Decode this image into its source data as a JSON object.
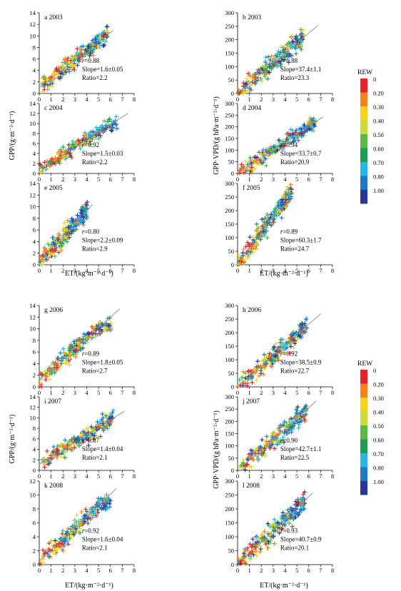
{
  "figure": {
    "left_ylabel": "GPP/(g·m⁻²·d⁻¹)",
    "right_ylabel": "GPP·VPD/(g hPa·m⁻²·d⁻¹)",
    "xlabel": "ET/(kg·m⁻²·d⁻¹)",
    "legend": {
      "title": "REW",
      "labels": [
        "0",
        "0.20",
        "0.30",
        "0.40",
        "0.50",
        "0.60",
        "0.70",
        "0.80",
        "1.00"
      ],
      "colors": [
        "#e8202a",
        "#f5821f",
        "#f8d51b",
        "#c8dc3a",
        "#5cb847",
        "#1e9d4e",
        "#28b6e8",
        "#1f78c4",
        "#283897"
      ]
    }
  },
  "chart_data": [
    {
      "id": "a",
      "type": "scatter",
      "title": "a 2003",
      "xlabel": "",
      "ylabel": "GPP/(g·m⁻²·d⁻¹)",
      "xlim": [
        0,
        8
      ],
      "ylim": [
        0,
        14
      ],
      "xticks": [
        0,
        1,
        2,
        3,
        4,
        5,
        6,
        7,
        8
      ],
      "yticks": [
        0,
        2,
        4,
        6,
        8,
        10,
        12,
        14
      ],
      "stats": [
        "r=0.88",
        "Slope=1.6±0.05",
        "Ratio=2.2"
      ],
      "fit": {
        "slope": 1.6,
        "intercept": 1.0,
        "x_range": [
          0,
          6.2
        ]
      },
      "scatter_shape": {
        "slope": 1.6,
        "intercept": 1.0,
        "spread": 1.4,
        "x_max": 5.8
      }
    },
    {
      "id": "b",
      "type": "scatter",
      "title": "b 2003",
      "xlabel": "",
      "ylabel": "GPP·VPD/(g hPa·m⁻²·d⁻¹)",
      "xlim": [
        0,
        8
      ],
      "ylim": [
        0,
        300
      ],
      "xticks": [
        0,
        1,
        2,
        3,
        4,
        5,
        6,
        7,
        8
      ],
      "yticks": [
        0,
        50,
        100,
        150,
        200,
        250,
        300
      ],
      "stats": [
        "r=0.88",
        "Slope=37.4±1.1",
        "Ratio=23.3"
      ],
      "fit": {
        "slope": 37.4,
        "intercept": 0,
        "x_range": [
          0.3,
          6.8
        ]
      },
      "scatter_shape": {
        "slope": 37.4,
        "intercept": 0,
        "spread": 35,
        "x_max": 5.5
      }
    },
    {
      "id": "c",
      "type": "scatter",
      "title": "c 2004",
      "xlabel": "",
      "ylabel": "GPP/(g·m⁻²·d⁻¹)",
      "xlim": [
        0,
        8
      ],
      "ylim": [
        0,
        14
      ],
      "xticks": [
        0,
        1,
        2,
        3,
        4,
        5,
        6,
        7,
        8
      ],
      "yticks": [
        0,
        2,
        4,
        6,
        8,
        10,
        12,
        14
      ],
      "stats": [
        "r=0.92",
        "Slope=1.5±0.03",
        "Ratio=2.2"
      ],
      "fit": {
        "slope": 1.5,
        "intercept": 0.8,
        "x_range": [
          0,
          7.5
        ]
      },
      "scatter_shape": {
        "slope": 1.5,
        "intercept": 0.8,
        "spread": 1.2,
        "x_max": 6.5
      }
    },
    {
      "id": "d",
      "type": "scatter",
      "title": "d 2004",
      "xlabel": "",
      "ylabel": "GPP·VPD/(g hPa·m⁻²·d⁻¹)",
      "xlim": [
        0,
        8
      ],
      "ylim": [
        0,
        300
      ],
      "xticks": [
        0,
        1,
        2,
        3,
        4,
        5,
        6,
        7,
        8
      ],
      "yticks": [
        0,
        50,
        100,
        150,
        200,
        250,
        300
      ],
      "stats": [
        "r=0.94",
        "Slope=33.7±0.7",
        "Ratio=20.9"
      ],
      "fit": {
        "slope": 33.7,
        "intercept": 0,
        "x_range": [
          0.3,
          7.2
        ]
      },
      "scatter_shape": {
        "slope": 33.7,
        "intercept": 0,
        "spread": 30,
        "x_max": 6.5
      }
    },
    {
      "id": "e",
      "type": "scatter",
      "title": "e 2005",
      "xlabel": "ET/(kg·m⁻²·d⁻¹)",
      "ylabel": "GPP/(g·m⁻²·d⁻¹)",
      "xlim": [
        0,
        8
      ],
      "ylim": [
        0,
        14
      ],
      "xticks": [
        0,
        1,
        2,
        3,
        4,
        5,
        6,
        7,
        8
      ],
      "yticks": [
        0,
        2,
        4,
        6,
        8,
        10,
        12,
        14
      ],
      "stats": [
        "r=0.80",
        "Slope=2.2±0.09",
        "Ratio=2.9"
      ],
      "fit": {
        "slope": 2.2,
        "intercept": 0.5,
        "x_range": [
          0,
          4.5
        ]
      },
      "scatter_shape": {
        "slope": 2.2,
        "intercept": 0.5,
        "spread": 1.6,
        "x_max": 4.0
      }
    },
    {
      "id": "f",
      "type": "scatter",
      "title": "f 2005",
      "xlabel": "ET/(kg·m⁻²·d⁻¹)",
      "ylabel": "GPP·VPD/(g hPa·m⁻²·d⁻¹)",
      "xlim": [
        0,
        8
      ],
      "ylim": [
        0,
        300
      ],
      "xticks": [
        0,
        1,
        2,
        3,
        4,
        5,
        6,
        7,
        8
      ],
      "yticks": [
        0,
        50,
        100,
        150,
        200,
        250,
        300
      ],
      "stats": [
        "r=0.89",
        "Slope=60.3±1.7",
        "Ratio=24.7"
      ],
      "fit": {
        "slope": 60.3,
        "intercept": 0,
        "x_range": [
          0.3,
          4.6
        ]
      },
      "scatter_shape": {
        "slope": 60.3,
        "intercept": 0,
        "spread": 35,
        "x_max": 4.5
      }
    },
    {
      "id": "g",
      "type": "scatter",
      "title": "g 2006",
      "xlabel": "",
      "ylabel": "GPP/(g·m⁻²·d⁻¹)",
      "xlim": [
        0,
        8
      ],
      "ylim": [
        0,
        14
      ],
      "xticks": [
        0,
        1,
        2,
        3,
        4,
        5,
        6,
        7,
        8
      ],
      "yticks": [
        0,
        2,
        4,
        6,
        8,
        10,
        12,
        14
      ],
      "stats": [
        "r=0.89",
        "Slope=1.8±0.05",
        "Ratio=2.7"
      ],
      "fit": {
        "slope": 1.8,
        "intercept": 1.2,
        "x_range": [
          0,
          6.8
        ]
      },
      "scatter_shape": {
        "slope": 1.8,
        "intercept": 1.2,
        "spread": 1.4,
        "x_max": 6.0
      }
    },
    {
      "id": "h",
      "type": "scatter",
      "title": "h 2006",
      "xlabel": "",
      "ylabel": "GPP·VPD/(g hPa·m⁻²·d⁻¹)",
      "xlim": [
        0,
        8
      ],
      "ylim": [
        0,
        300
      ],
      "xticks": [
        0,
        1,
        2,
        3,
        4,
        5,
        6,
        7,
        8
      ],
      "yticks": [
        0,
        50,
        100,
        150,
        200,
        250,
        300
      ],
      "stats": [
        "r=0.92",
        "Slope=38.5±0.9",
        "Ratio=22.7"
      ],
      "fit": {
        "slope": 38.5,
        "intercept": 0,
        "x_range": [
          0.3,
          7.0
        ]
      },
      "scatter_shape": {
        "slope": 38.5,
        "intercept": 0,
        "spread": 30,
        "x_max": 5.8
      }
    },
    {
      "id": "i",
      "type": "scatter",
      "title": "i 2007",
      "xlabel": "",
      "ylabel": "GPP/(g·m⁻²·d⁻¹)",
      "xlim": [
        0,
        8
      ],
      "ylim": [
        0,
        14
      ],
      "xticks": [
        0,
        1,
        2,
        3,
        4,
        5,
        6,
        7,
        8
      ],
      "yticks": [
        0,
        2,
        4,
        6,
        8,
        10,
        12,
        14
      ],
      "stats": [
        "r=0.87",
        "Slope=1.4±0.04",
        "Ratio=2.1"
      ],
      "fit": {
        "slope": 1.4,
        "intercept": 1.2,
        "x_range": [
          0,
          7.2
        ]
      },
      "scatter_shape": {
        "slope": 1.4,
        "intercept": 1.2,
        "spread": 1.4,
        "x_max": 6.2
      }
    },
    {
      "id": "j",
      "type": "scatter",
      "title": "j 2007",
      "xlabel": "",
      "ylabel": "GPP·VPD/(g hPa·m⁻²·d⁻¹)",
      "xlim": [
        0,
        8
      ],
      "ylim": [
        0,
        300
      ],
      "xticks": [
        0,
        1,
        2,
        3,
        4,
        5,
        6,
        7,
        8
      ],
      "yticks": [
        0,
        50,
        100,
        150,
        200,
        250,
        300
      ],
      "stats": [
        "r=0.90",
        "Slope=42.7±1.1",
        "Ratio=22.5"
      ],
      "fit": {
        "slope": 42.7,
        "intercept": 0,
        "x_range": [
          0.3,
          6.6
        ]
      },
      "scatter_shape": {
        "slope": 42.7,
        "intercept": 0,
        "spread": 38,
        "x_max": 5.8
      }
    },
    {
      "id": "k",
      "type": "scatter",
      "title": "k 2008",
      "xlabel": "ET/(kg·m⁻²·d⁻¹)",
      "ylabel": "GPP/(g·m⁻²·d⁻¹)",
      "xlim": [
        0,
        8
      ],
      "ylim": [
        0,
        12
      ],
      "xticks": [
        0,
        1,
        2,
        3,
        4,
        5,
        6,
        7,
        8
      ],
      "yticks": [
        0,
        2,
        4,
        6,
        8,
        10,
        12
      ],
      "stats": [
        "r=0.92",
        "Slope=1.6±0.04",
        "Ratio=2.1"
      ],
      "fit": {
        "slope": 1.6,
        "intercept": 0.5,
        "x_range": [
          0,
          6.5
        ]
      },
      "scatter_shape": {
        "slope": 1.6,
        "intercept": 0.5,
        "spread": 1.2,
        "x_max": 6.0
      }
    },
    {
      "id": "l",
      "type": "scatter",
      "title": "l 2008",
      "xlabel": "ET/(kg·m⁻²·d⁻¹)",
      "ylabel": "GPP·VPD/(g hPa·m⁻²·d⁻¹)",
      "xlim": [
        0,
        8
      ],
      "ylim": [
        0,
        300
      ],
      "xticks": [
        0,
        1,
        2,
        3,
        4,
        5,
        6,
        7,
        8
      ],
      "yticks": [
        0,
        50,
        100,
        150,
        200,
        250,
        300
      ],
      "stats": [
        "r=0.93",
        "Slope=40.7±0.9",
        "Ratio=20.1"
      ],
      "fit": {
        "slope": 40.7,
        "intercept": 0,
        "x_range": [
          0.3,
          6.3
        ]
      },
      "scatter_shape": {
        "slope": 40.7,
        "intercept": 0,
        "spread": 35,
        "x_max": 5.6
      }
    }
  ]
}
